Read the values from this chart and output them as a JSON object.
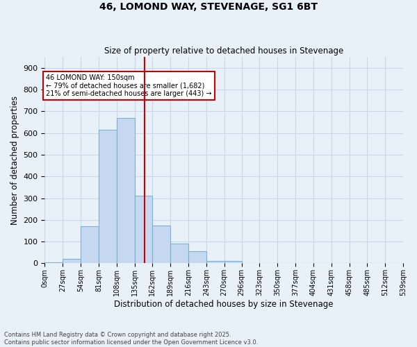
{
  "title_line1": "46, LOMOND WAY, STEVENAGE, SG1 6BT",
  "title_line2": "Size of property relative to detached houses in Stevenage",
  "xlabel": "Distribution of detached houses by size in Stevenage",
  "ylabel": "Number of detached properties",
  "footer_line1": "Contains HM Land Registry data © Crown copyright and database right 2025.",
  "footer_line2": "Contains public sector information licensed under the Open Government Licence v3.0.",
  "bar_edges": [
    0,
    27,
    54,
    81,
    108,
    135,
    162,
    189,
    216,
    243,
    270,
    296,
    323,
    350,
    377,
    404,
    431,
    458,
    485,
    512,
    539
  ],
  "bar_heights": [
    5,
    20,
    170,
    615,
    670,
    310,
    175,
    90,
    55,
    10,
    10,
    0,
    0,
    0,
    0,
    0,
    0,
    0,
    0,
    0
  ],
  "bar_color": "#c5d8f0",
  "bar_edgecolor": "#7bafd4",
  "grid_color": "#c8d8e8",
  "background_color": "#e8f0f8",
  "property_size": 150,
  "vline_color": "#cc0000",
  "annotation_text": "46 LOMOND WAY: 150sqm\n← 79% of detached houses are smaller (1,682)\n21% of semi-detached houses are larger (443) →",
  "annotation_box_color": "#ffffff",
  "annotation_box_edge": "#cc0000",
  "ylim": [
    0,
    950
  ],
  "yticks": [
    0,
    100,
    200,
    300,
    400,
    500,
    600,
    700,
    800,
    900
  ]
}
